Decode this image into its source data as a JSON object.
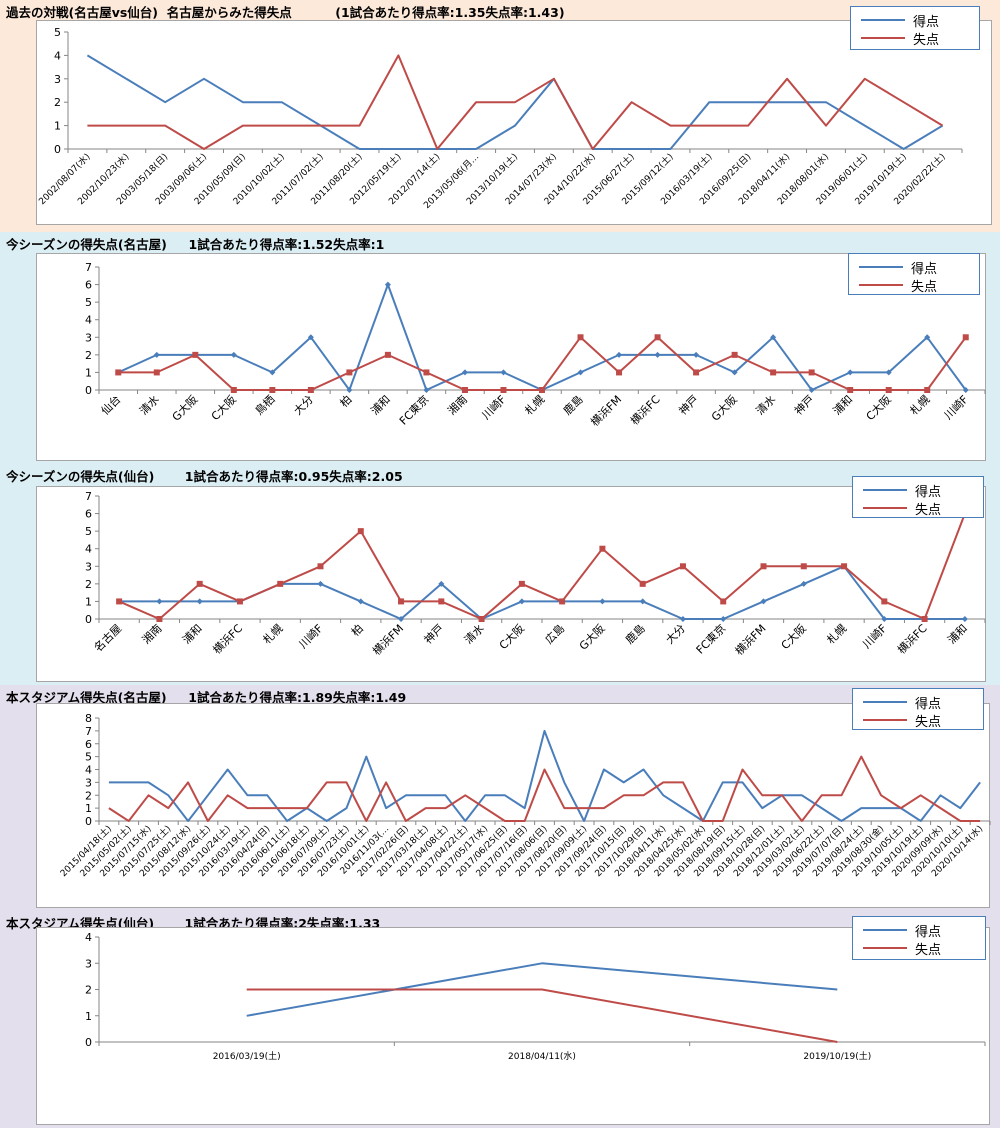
{
  "colors": {
    "score": "#4a7ebb",
    "conceded": "#be4b48"
  },
  "panels": [
    {
      "id": "p1",
      "title": "過去の対戦(名古屋vs仙台)  名古屋からみた得失点          (1試合あたり得点率:1.35失点率:1.43)",
      "chart_data": {
        "type": "line",
        "categories": [
          "2002/08/07(水)",
          "2002/10/23(水)",
          "2003/05/18(日)",
          "2003/09/06(土)",
          "2010/05/09(日)",
          "2010/10/02(土)",
          "2011/07/02(土)",
          "2011/08/20(土)",
          "2012/05/19(土)",
          "2012/07/14(土)",
          "2013/05/06(月…",
          "2013/10/19(土)",
          "2014/07/23(水)",
          "2014/10/22(水)",
          "2015/06/27(土)",
          "2015/09/12(土)",
          "2016/03/19(土)",
          "2016/09/25(日)",
          "2018/04/11(水)",
          "2018/08/01(水)",
          "2019/06/01(土)",
          "2019/10/19(土)",
          "2020/02/22(土)"
        ],
        "series": [
          {
            "name": "得点",
            "values": [
              4,
              3,
              2,
              3,
              2,
              2,
              1,
              0,
              0,
              0,
              0,
              1,
              3,
              0,
              0,
              0,
              2,
              2,
              2,
              2,
              1,
              0,
              1
            ]
          },
          {
            "name": "失点",
            "values": [
              1,
              1,
              1,
              0,
              1,
              1,
              1,
              1,
              4,
              0,
              2,
              2,
              3,
              0,
              2,
              1,
              1,
              1,
              3,
              1,
              3,
              2,
              1
            ]
          }
        ],
        "ylim": [
          0,
          5
        ],
        "yticks": [
          0,
          1,
          2,
          3,
          4,
          5
        ],
        "markers": false,
        "xlabel_rotate": true
      }
    },
    {
      "id": "p2",
      "title": "今シーズンの得失点(名古屋)     1試合あたり得点率:1.52失点率:1",
      "chart_data": {
        "type": "line",
        "categories": [
          "仙台",
          "清水",
          "G大阪",
          "C大阪",
          "鳥栖",
          "大分",
          "柏",
          "浦和",
          "FC東京",
          "湘南",
          "川崎F",
          "札幌",
          "鹿島",
          "横浜FM",
          "横浜FC",
          "神戸",
          "G大阪",
          "清水",
          "神戸",
          "浦和",
          "C大阪",
          "札幌",
          "川崎F"
        ],
        "series": [
          {
            "name": "得点",
            "values": [
              1,
              2,
              2,
              2,
              1,
              3,
              0,
              6,
              0,
              1,
              1,
              0,
              1,
              2,
              2,
              2,
              1,
              3,
              0,
              1,
              1,
              3,
              0
            ]
          },
          {
            "name": "失点",
            "values": [
              1,
              1,
              2,
              0,
              0,
              0,
              1,
              2,
              1,
              0,
              0,
              0,
              3,
              1,
              3,
              1,
              2,
              1,
              1,
              0,
              0,
              0,
              3
            ]
          }
        ],
        "ylim": [
          0,
          7
        ],
        "yticks": [
          0,
          1,
          2,
          3,
          4,
          5,
          6,
          7
        ],
        "markers": true,
        "xlabel_rotate": true
      }
    },
    {
      "id": "p3",
      "title": "今シーズンの得失点(仙台)       1試合あたり得点率:0.95失点率:2.05",
      "chart_data": {
        "type": "line",
        "categories": [
          "名古屋",
          "湘南",
          "浦和",
          "横浜FC",
          "札幌",
          "川崎F",
          "柏",
          "横浜FM",
          "神戸",
          "清水",
          "C大阪",
          "広島",
          "G大阪",
          "鹿島",
          "大分",
          "FC東京",
          "横浜FM",
          "C大阪",
          "札幌",
          "川崎F",
          "横浜FC",
          "浦和"
        ],
        "series": [
          {
            "name": "得点",
            "values": [
              1,
              1,
              1,
              1,
              2,
              2,
              1,
              0,
              2,
              0,
              1,
              1,
              1,
              1,
              0,
              0,
              1,
              2,
              3,
              0,
              0,
              0
            ]
          },
          {
            "name": "失点",
            "values": [
              1,
              0,
              2,
              1,
              2,
              3,
              5,
              1,
              1,
              0,
              2,
              1,
              4,
              2,
              3,
              1,
              3,
              3,
              3,
              1,
              0,
              6
            ]
          }
        ],
        "ylim": [
          0,
          7
        ],
        "yticks": [
          0,
          1,
          2,
          3,
          4,
          5,
          6,
          7
        ],
        "markers": true,
        "xlabel_rotate": true
      }
    },
    {
      "id": "p4",
      "title": "本スタジアム得失点(名古屋)     1試合あたり得点率:1.89失点率:1.49",
      "chart_data": {
        "type": "line",
        "categories": [
          "2015/04/18(土)",
          "2015/05/02(土)",
          "2015/07/15(水)",
          "2015/07/25(土)",
          "2015/08/12(水)",
          "2015/09/26(土)",
          "2015/10/24(土)",
          "2016/03/19(土)",
          "2016/04/24(日)",
          "2016/06/11(土)",
          "2016/06/18(土)",
          "2016/07/09(土)",
          "2016/07/23(土)",
          "2016/10/01(土)",
          "2016/11/03(…",
          "2017/02/26(日)",
          "2017/03/18(土)",
          "2017/04/08(土)",
          "2017/04/22(土)",
          "2017/05/17(水)",
          "2017/06/25(日)",
          "2017/07/16(日)",
          "2017/08/06(日)",
          "2017/08/20(日)",
          "2017/09/09(土)",
          "2017/09/24(日)",
          "2017/10/15(日)",
          "2017/10/29(日)",
          "2018/04/11(水)",
          "2018/04/25(水)",
          "2018/05/02(水)",
          "2018/08/19(日)",
          "2018/09/15(土)",
          "2018/10/28(日)",
          "2018/12/01(土)",
          "2019/03/02(土)",
          "2019/06/22(土)",
          "2019/07/07(日)",
          "2019/08/24(土)",
          "2019/08/30(金)",
          "2019/10/05(土)",
          "2019/10/19(土)",
          "2020/09/09(水)",
          "2020/10/10(土)",
          "2020/10/14(水)"
        ],
        "series": [
          {
            "name": "得点",
            "values": [
              3,
              3,
              3,
              2,
              0,
              2,
              4,
              2,
              2,
              0,
              1,
              0,
              1,
              5,
              1,
              2,
              2,
              2,
              0,
              2,
              2,
              1,
              7,
              3,
              0,
              4,
              3,
              4,
              2,
              1,
              0,
              3,
              3,
              1,
              2,
              2,
              1,
              0,
              1,
              1,
              1,
              0,
              2,
              1,
              3
            ]
          },
          {
            "name": "失点",
            "values": [
              1,
              0,
              2,
              1,
              3,
              0,
              2,
              1,
              1,
              1,
              1,
              3,
              3,
              0,
              3,
              0,
              1,
              1,
              2,
              1,
              0,
              0,
              4,
              1,
              1,
              1,
              2,
              2,
              3,
              3,
              0,
              0,
              4,
              2,
              2,
              0,
              2,
              2,
              5,
              2,
              1,
              2,
              1,
              0,
              0
            ]
          }
        ],
        "ylim": [
          0,
          8
        ],
        "yticks": [
          0,
          1,
          2,
          3,
          4,
          5,
          6,
          7,
          8
        ],
        "markers": false,
        "xlabel_rotate": true
      }
    },
    {
      "id": "p5",
      "title": "本スタジアム得失点(仙台)       1試合あたり得点率:2失点率:1.33",
      "chart_data": {
        "type": "line",
        "categories": [
          "2016/03/19(土)",
          "2018/04/11(水)",
          "2019/10/19(土)"
        ],
        "series": [
          {
            "name": "得点",
            "values": [
              1,
              3,
              2
            ]
          },
          {
            "name": "失点",
            "values": [
              2,
              2,
              0
            ]
          }
        ],
        "ylim": [
          0,
          4
        ],
        "yticks": [
          0,
          1,
          2,
          3,
          4
        ],
        "markers": false,
        "xlabel_rotate": false
      }
    }
  ]
}
